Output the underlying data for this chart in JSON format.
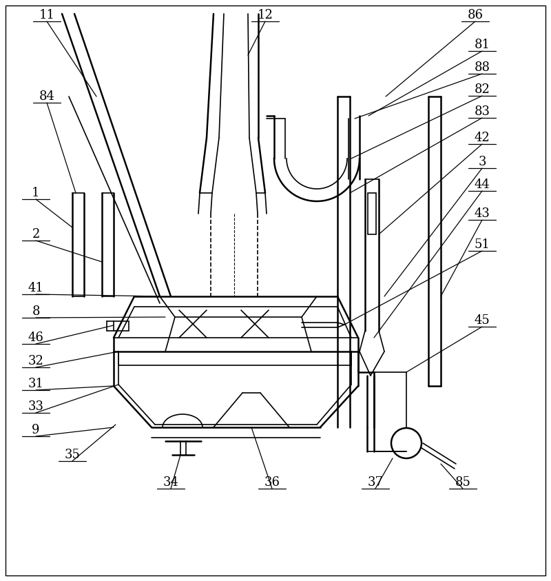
{
  "fig_width": 8.0,
  "fig_height": 8.43,
  "dpi": 100,
  "bg_color": "#ffffff",
  "lc": "#000000",
  "lw": 1.2,
  "lw2": 1.8
}
